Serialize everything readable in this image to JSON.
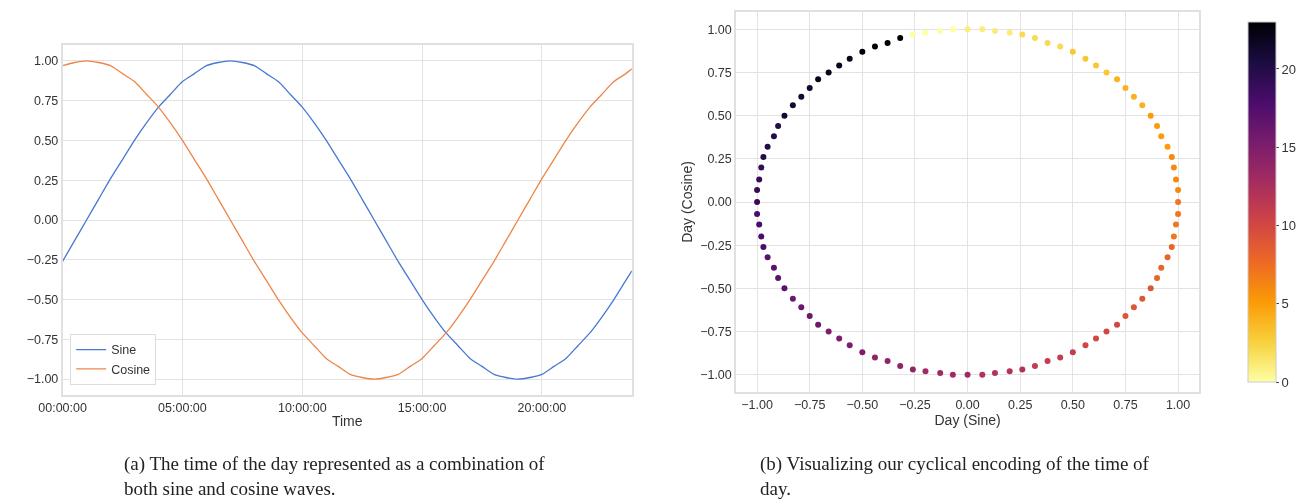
{
  "chart_data": [
    {
      "type": "line",
      "xlabel": "Time",
      "legend": "bottom left",
      "grid": true,
      "annotations": [
        "(a) The time of the day represented as a combination of both sine and cosine waves."
      ],
      "x": [
        0,
        0.5,
        1,
        1.5,
        2,
        2.5,
        3,
        3.5,
        4,
        4.5,
        5,
        5.5,
        6,
        6.5,
        7,
        7.5,
        8,
        8.5,
        9,
        9.5,
        10,
        10.5,
        11,
        11.5,
        12,
        12.5,
        13,
        13.5,
        14,
        14.5,
        15,
        15.5,
        16,
        16.5,
        17,
        17.5,
        18,
        18.5,
        19,
        19.5,
        20,
        20.5,
        21,
        21.5,
        22,
        22.5,
        23,
        23.5,
        23.75
      ],
      "xlim": [
        0,
        23.75
      ],
      "xticks": [
        {
          "value": 0,
          "label": "00:00:00"
        },
        {
          "value": 5,
          "label": "05:00:00"
        },
        {
          "value": 10,
          "label": "10:00:00"
        },
        {
          "value": 15,
          "label": "15:00:00"
        },
        {
          "value": 20,
          "label": "20:00:00"
        }
      ],
      "ylim": [
        -1.1,
        1.1
      ],
      "yticks": [
        {
          "value": -1,
          "label": "−1.00"
        },
        {
          "value": -0.75,
          "label": "−0.75"
        },
        {
          "value": -0.5,
          "label": "−0.50"
        },
        {
          "value": -0.25,
          "label": "−0.25"
        },
        {
          "value": 0,
          "label": "0.00"
        },
        {
          "value": 0.25,
          "label": "0.25"
        },
        {
          "value": 0.5,
          "label": "0.50"
        },
        {
          "value": 0.75,
          "label": "0.75"
        },
        {
          "value": 1,
          "label": "1.00"
        }
      ],
      "series": [
        {
          "name": "Sine",
          "color": "#4878d0",
          "values": [
            -0.26,
            -0.13,
            0,
            0.13,
            0.26,
            0.38,
            0.5,
            0.61,
            0.71,
            0.79,
            0.87,
            0.92,
            0.97,
            0.99,
            1,
            0.99,
            0.97,
            0.92,
            0.87,
            0.79,
            0.71,
            0.61,
            0.5,
            0.38,
            0.26,
            0.13,
            0,
            -0.13,
            -0.26,
            -0.38,
            -0.5,
            -0.61,
            -0.71,
            -0.79,
            -0.87,
            -0.92,
            -0.97,
            -0.99,
            -1,
            -0.99,
            -0.97,
            -0.92,
            -0.87,
            -0.79,
            -0.71,
            -0.61,
            -0.5,
            -0.38,
            -0.32
          ]
        },
        {
          "name": "Cosine",
          "color": "#ee854a",
          "values": [
            0.97,
            0.99,
            1,
            0.99,
            0.97,
            0.92,
            0.87,
            0.79,
            0.71,
            0.61,
            0.5,
            0.38,
            0.26,
            0.13,
            0,
            -0.13,
            -0.26,
            -0.38,
            -0.5,
            -0.61,
            -0.71,
            -0.79,
            -0.87,
            -0.92,
            -0.97,
            -0.99,
            -1,
            -0.99,
            -0.97,
            -0.92,
            -0.87,
            -0.79,
            -0.71,
            -0.61,
            -0.5,
            -0.38,
            -0.26,
            -0.13,
            0,
            0.13,
            0.26,
            0.38,
            0.5,
            0.61,
            0.71,
            0.79,
            0.87,
            0.92,
            0.95
          ]
        }
      ]
    },
    {
      "type": "scatter",
      "xlabel": "Day (Sine)",
      "ylabel": "Day (Cosine)",
      "grid": true,
      "marker": "circle",
      "annotations": [
        "(b) Visualizing our cyclical encoding of the time of day."
      ],
      "xlim": [
        -1.1,
        1.1
      ],
      "xticks": [
        {
          "value": -1,
          "label": "−1.00"
        },
        {
          "value": -0.75,
          "label": "−0.75"
        },
        {
          "value": -0.5,
          "label": "−0.50"
        },
        {
          "value": -0.25,
          "label": "−0.25"
        },
        {
          "value": 0,
          "label": "0.00"
        },
        {
          "value": 0.25,
          "label": "0.25"
        },
        {
          "value": 0.5,
          "label": "0.50"
        },
        {
          "value": 0.75,
          "label": "0.75"
        },
        {
          "value": 1,
          "label": "1.00"
        }
      ],
      "ylim": [
        -1.1,
        1.1
      ],
      "yticks": [
        {
          "value": -1,
          "label": "−1.00"
        },
        {
          "value": -0.75,
          "label": "−0.75"
        },
        {
          "value": -0.5,
          "label": "−0.50"
        },
        {
          "value": -0.25,
          "label": "−0.25"
        },
        {
          "value": 0,
          "label": "0.00"
        },
        {
          "value": 0.25,
          "label": "0.25"
        },
        {
          "value": 0.5,
          "label": "0.50"
        },
        {
          "value": 0.75,
          "label": "0.75"
        },
        {
          "value": 1,
          "label": "1.00"
        }
      ],
      "clim": [
        0,
        23
      ],
      "cticks": [
        0,
        5,
        10,
        15,
        20
      ],
      "x": [
        0,
        0.07,
        0.13,
        0.2,
        0.26,
        0.32,
        0.38,
        0.44,
        0.5,
        0.56,
        0.61,
        0.66,
        0.71,
        0.75,
        0.79,
        0.83,
        0.87,
        0.9,
        0.92,
        0.95,
        0.97,
        0.98,
        0.99,
        1,
        1,
        1,
        0.99,
        0.98,
        0.97,
        0.95,
        0.92,
        0.9,
        0.87,
        0.83,
        0.79,
        0.75,
        0.71,
        0.66,
        0.61,
        0.56,
        0.5,
        0.44,
        0.38,
        0.32,
        0.26,
        0.2,
        0.13,
        0.07,
        0,
        -0.07,
        -0.13,
        -0.2,
        -0.26,
        -0.32,
        -0.38,
        -0.44,
        -0.5,
        -0.56,
        -0.61,
        -0.66,
        -0.71,
        -0.75,
        -0.79,
        -0.83,
        -0.87,
        -0.9,
        -0.92,
        -0.95,
        -0.97,
        -0.98,
        -0.99,
        -1,
        -1,
        -1,
        -0.99,
        -0.98,
        -0.97,
        -0.95,
        -0.92,
        -0.9,
        -0.87,
        -0.83,
        -0.79,
        -0.75,
        -0.71,
        -0.66,
        -0.61,
        -0.56,
        -0.5,
        -0.44,
        -0.38,
        -0.32,
        -0.26,
        -0.2,
        -0.13,
        -0.07
      ],
      "values": [
        1,
        1,
        0.99,
        0.98,
        0.97,
        0.95,
        0.92,
        0.9,
        0.87,
        0.83,
        0.79,
        0.75,
        0.71,
        0.66,
        0.61,
        0.56,
        0.5,
        0.44,
        0.38,
        0.32,
        0.26,
        0.2,
        0.13,
        0.07,
        0,
        -0.07,
        -0.13,
        -0.2,
        -0.26,
        -0.32,
        -0.38,
        -0.44,
        -0.5,
        -0.56,
        -0.61,
        -0.66,
        -0.71,
        -0.75,
        -0.79,
        -0.83,
        -0.87,
        -0.9,
        -0.92,
        -0.95,
        -0.97,
        -0.98,
        -0.99,
        -1,
        -1,
        -1,
        -0.99,
        -0.98,
        -0.97,
        -0.95,
        -0.92,
        -0.9,
        -0.87,
        -0.83,
        -0.79,
        -0.75,
        -0.71,
        -0.66,
        -0.61,
        -0.56,
        -0.5,
        -0.44,
        -0.38,
        -0.32,
        -0.26,
        -0.2,
        -0.13,
        -0.07,
        0,
        0.07,
        0.13,
        0.2,
        0.26,
        0.32,
        0.38,
        0.44,
        0.5,
        0.56,
        0.61,
        0.66,
        0.71,
        0.75,
        0.79,
        0.83,
        0.87,
        0.9,
        0.92,
        0.95,
        0.97,
        0.98,
        0.99,
        1
      ],
      "cvalues": [
        1,
        1,
        1,
        1,
        2,
        2,
        2,
        2,
        3,
        3,
        3,
        3,
        4,
        4,
        4,
        4,
        5,
        5,
        5,
        5,
        6,
        6,
        6,
        6,
        7,
        7,
        7,
        7,
        8,
        8,
        8,
        8,
        9,
        9,
        9,
        9,
        10,
        10,
        10,
        10,
        11,
        11,
        11,
        11,
        12,
        12,
        12,
        12,
        13,
        13,
        13,
        13,
        14,
        14,
        14,
        14,
        15,
        15,
        15,
        15,
        16,
        16,
        16,
        16,
        17,
        17,
        17,
        17,
        18,
        18,
        18,
        18,
        19,
        19,
        19,
        19,
        20,
        20,
        20,
        20,
        21,
        21,
        21,
        21,
        22,
        22,
        22,
        22,
        23,
        23,
        23,
        23,
        0,
        0,
        0,
        0
      ]
    }
  ]
}
